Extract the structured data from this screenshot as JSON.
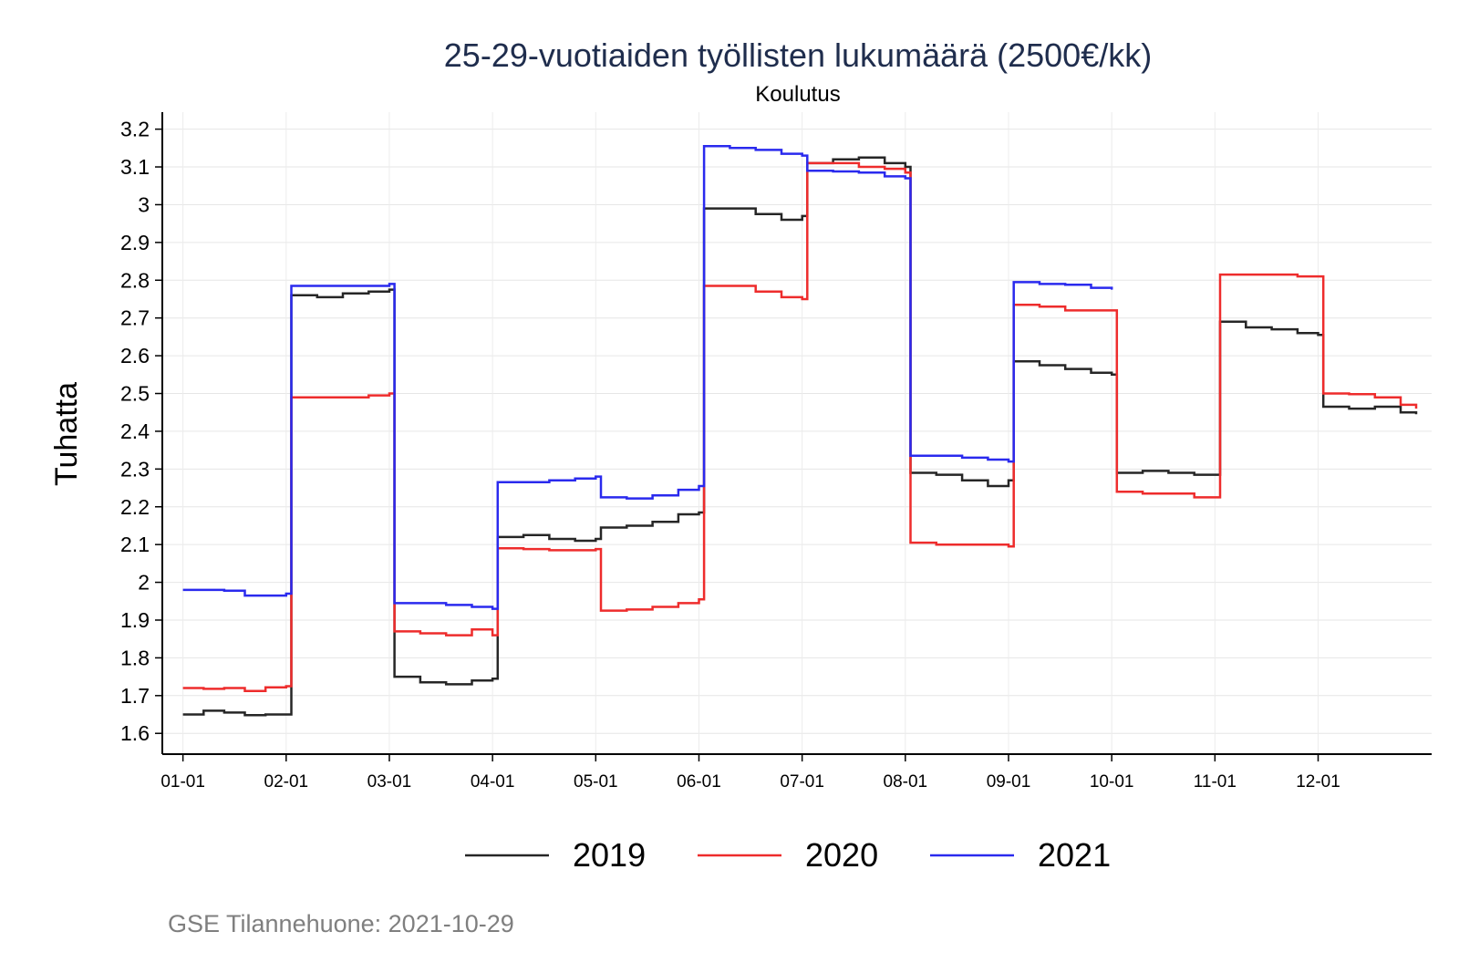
{
  "chart_data": {
    "type": "line",
    "title": "25-29-vuotiaiden työllisten lukumäärä (2500€/kk)",
    "subtitle": "Koulutus",
    "ylabel": "Tuhatta",
    "xlabel": "",
    "ylim": [
      1.545,
      3.245
    ],
    "yticks": [
      1.6,
      1.7,
      1.8,
      1.9,
      2.0,
      2.1,
      2.2,
      2.3,
      2.4,
      2.5,
      2.6,
      2.7,
      2.8,
      2.9,
      3.0,
      3.1,
      3.2
    ],
    "ytick_labels": [
      "1.6",
      "1.7",
      "1.8",
      "1.9",
      "2",
      "2.1",
      "2.2",
      "2.3",
      "2.4",
      "2.5",
      "2.6",
      "2.7",
      "2.8",
      "2.9",
      "3",
      "3.1",
      "3.2"
    ],
    "xlim": [
      0.8,
      13.1
    ],
    "xticks": [
      1,
      2,
      3,
      4,
      5,
      6,
      7,
      8,
      9,
      10,
      11,
      12
    ],
    "xtick_labels": [
      "01-01",
      "02-01",
      "03-01",
      "04-01",
      "05-01",
      "06-01",
      "07-01",
      "08-01",
      "09-01",
      "10-01",
      "11-01",
      "12-01"
    ],
    "grid": true,
    "legend_position": "bottom",
    "series": [
      {
        "name": "2019",
        "color": "#262626",
        "x": [
          1.0,
          1.2,
          1.4,
          1.6,
          1.8,
          2.0,
          2.05,
          2.3,
          2.55,
          2.8,
          3.0,
          3.05,
          3.3,
          3.55,
          3.8,
          4.0,
          4.05,
          4.3,
          4.55,
          4.8,
          5.0,
          5.05,
          5.3,
          5.55,
          5.8,
          6.0,
          6.05,
          6.3,
          6.55,
          6.8,
          7.0,
          7.05,
          7.3,
          7.55,
          7.8,
          8.0,
          8.05,
          8.3,
          8.55,
          8.8,
          9.0,
          9.05,
          9.3,
          9.55,
          9.8,
          10.0,
          10.05,
          10.3,
          10.55,
          10.8,
          11.0,
          11.05,
          11.3,
          11.55,
          11.8,
          12.0,
          12.05,
          12.3,
          12.55,
          12.8,
          12.95
        ],
        "values": [
          1.65,
          1.66,
          1.655,
          1.648,
          1.65,
          1.65,
          2.76,
          2.755,
          2.765,
          2.77,
          2.775,
          1.75,
          1.735,
          1.73,
          1.74,
          1.745,
          2.12,
          2.125,
          2.115,
          2.11,
          2.115,
          2.145,
          2.15,
          2.16,
          2.18,
          2.185,
          2.99,
          2.99,
          2.975,
          2.96,
          2.97,
          3.11,
          3.12,
          3.125,
          3.11,
          3.1,
          2.29,
          2.285,
          2.27,
          2.255,
          2.27,
          2.585,
          2.575,
          2.565,
          2.555,
          2.55,
          2.29,
          2.295,
          2.29,
          2.285,
          2.285,
          2.69,
          2.675,
          2.67,
          2.66,
          2.655,
          2.465,
          2.46,
          2.465,
          2.45,
          2.445
        ]
      },
      {
        "name": "2020",
        "color": "#ee2c2c",
        "x": [
          1.0,
          1.2,
          1.4,
          1.6,
          1.8,
          2.0,
          2.05,
          2.3,
          2.55,
          2.8,
          3.0,
          3.05,
          3.3,
          3.55,
          3.8,
          4.0,
          4.05,
          4.3,
          4.55,
          4.8,
          5.0,
          5.05,
          5.3,
          5.55,
          5.8,
          6.0,
          6.05,
          6.3,
          6.55,
          6.8,
          7.0,
          7.05,
          7.3,
          7.55,
          7.8,
          8.0,
          8.05,
          8.3,
          8.55,
          8.8,
          9.0,
          9.05,
          9.3,
          9.55,
          9.8,
          10.0,
          10.05,
          10.3,
          10.55,
          10.8,
          11.0,
          11.05,
          11.3,
          11.55,
          11.8,
          12.0,
          12.05,
          12.3,
          12.55,
          12.8,
          12.95
        ],
        "values": [
          1.72,
          1.718,
          1.72,
          1.712,
          1.722,
          1.725,
          2.49,
          2.49,
          2.49,
          2.495,
          2.5,
          1.87,
          1.865,
          1.86,
          1.875,
          1.86,
          2.09,
          2.088,
          2.085,
          2.085,
          2.088,
          1.925,
          1.928,
          1.935,
          1.945,
          1.955,
          2.785,
          2.785,
          2.77,
          2.755,
          2.75,
          3.11,
          3.11,
          3.1,
          3.095,
          3.085,
          2.105,
          2.1,
          2.1,
          2.1,
          2.095,
          2.735,
          2.73,
          2.72,
          2.72,
          2.72,
          2.24,
          2.235,
          2.235,
          2.225,
          2.225,
          2.815,
          2.815,
          2.815,
          2.81,
          2.81,
          2.5,
          2.498,
          2.49,
          2.47,
          2.46
        ]
      },
      {
        "name": "2021",
        "color": "#2a2aee",
        "x": [
          1.0,
          1.2,
          1.4,
          1.6,
          1.8,
          2.0,
          2.05,
          2.3,
          2.55,
          2.8,
          3.0,
          3.05,
          3.3,
          3.55,
          3.8,
          4.0,
          4.05,
          4.3,
          4.55,
          4.8,
          5.0,
          5.05,
          5.3,
          5.55,
          5.8,
          6.0,
          6.05,
          6.3,
          6.55,
          6.8,
          7.0,
          7.05,
          7.3,
          7.55,
          7.8,
          8.0,
          8.05,
          8.3,
          8.55,
          8.8,
          9.0,
          9.05,
          9.3,
          9.55,
          9.8,
          10.0
        ],
        "values": [
          1.98,
          1.98,
          1.978,
          1.965,
          1.965,
          1.97,
          2.785,
          2.785,
          2.785,
          2.785,
          2.79,
          1.945,
          1.945,
          1.94,
          1.935,
          1.93,
          2.265,
          2.265,
          2.27,
          2.275,
          2.28,
          2.225,
          2.222,
          2.23,
          2.245,
          2.255,
          3.155,
          3.15,
          3.145,
          3.135,
          3.13,
          3.09,
          3.088,
          3.085,
          3.075,
          3.07,
          2.335,
          2.335,
          2.33,
          2.325,
          2.32,
          2.795,
          2.79,
          2.788,
          2.78,
          2.775
        ]
      }
    ]
  },
  "caption": "GSE Tilannehuone: 2021-10-29"
}
